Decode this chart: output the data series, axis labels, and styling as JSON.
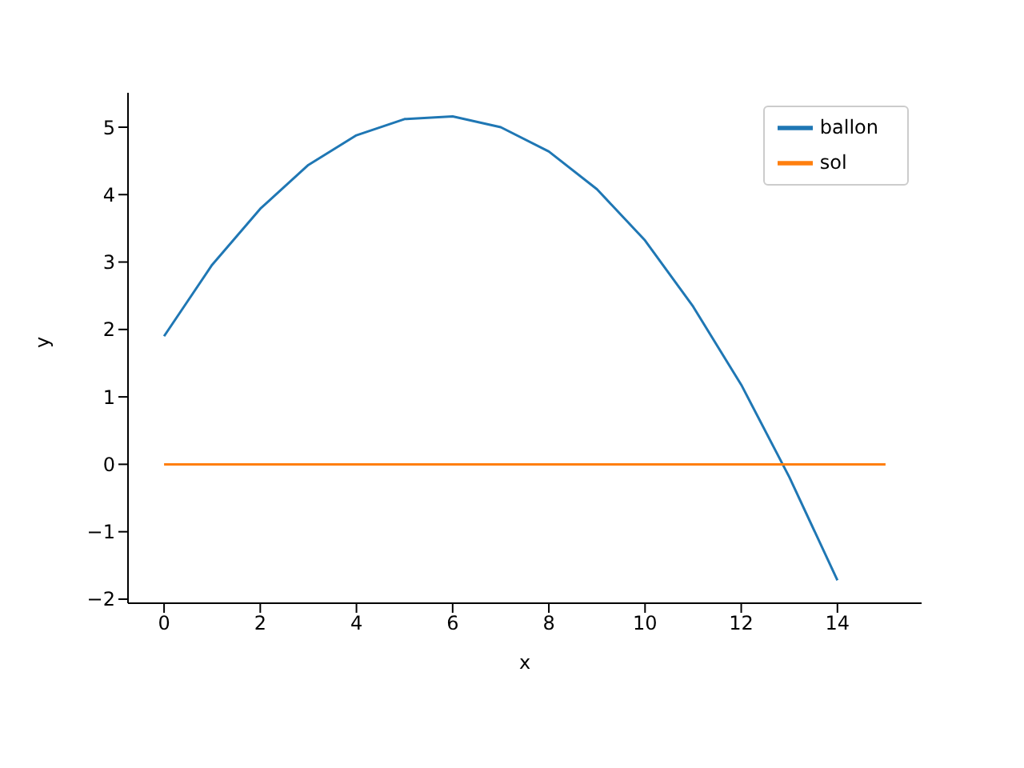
{
  "chart_data": {
    "type": "line",
    "xlabel": "x",
    "ylabel": "y",
    "series": [
      {
        "name": "ballon",
        "color": "#1f77b4",
        "x": [
          0,
          1,
          2,
          3,
          4,
          5,
          6,
          7,
          8,
          9,
          10,
          11,
          12,
          13,
          14
        ],
        "values": [
          1.9,
          2.96,
          3.79,
          4.44,
          4.88,
          5.12,
          5.16,
          5.0,
          4.64,
          4.08,
          3.32,
          2.34,
          1.18,
          -0.19,
          -1.72
        ]
      },
      {
        "name": "sol",
        "color": "#ff7f0e",
        "x": [
          0,
          15
        ],
        "values": [
          0,
          0
        ]
      }
    ],
    "xlim": [
      -0.75,
      15.75
    ],
    "xticks": [
      0,
      2,
      4,
      6,
      8,
      10,
      12,
      14
    ],
    "ylim": [
      -2.06,
      5.51
    ],
    "yticks": [
      -2,
      -1,
      0,
      1,
      2,
      3,
      4,
      5
    ],
    "grid": false,
    "legend": "top right",
    "marker": "none",
    "line_style": "solid"
  }
}
